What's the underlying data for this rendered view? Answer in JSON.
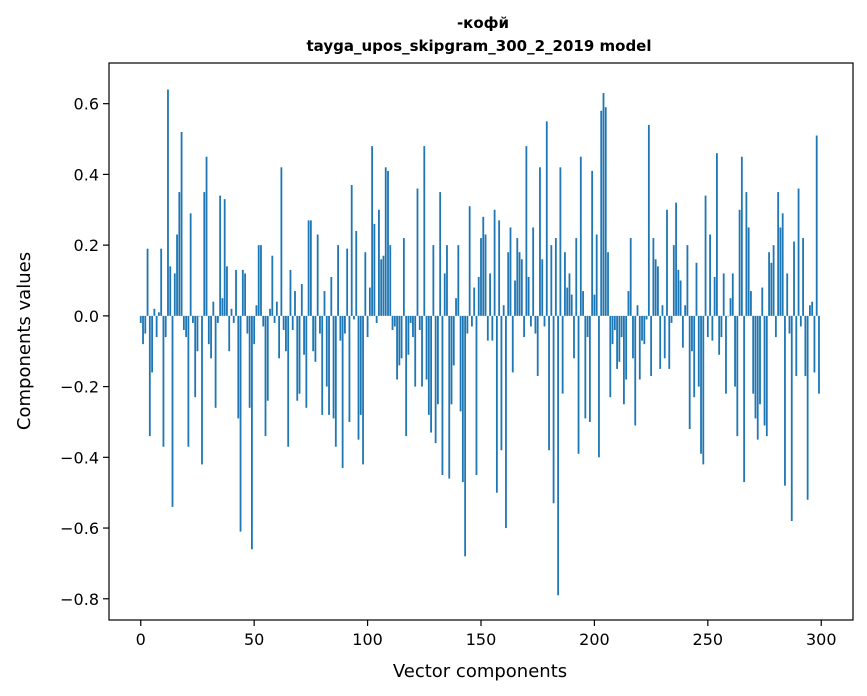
{
  "chart_data": {
    "type": "bar",
    "title": "-кофй",
    "subtitle": "tayga_upos_skipgram_300_2_2019 model",
    "xlabel": "Vector components",
    "ylabel": "Components values",
    "xlim": [
      -14,
      314
    ],
    "ylim": [
      -0.86,
      0.715
    ],
    "xticks": [
      0,
      50,
      100,
      150,
      200,
      250,
      300
    ],
    "xtick_labels": [
      "0",
      "50",
      "100",
      "150",
      "200",
      "250",
      "300"
    ],
    "yticks": [
      -0.8,
      -0.6,
      -0.4,
      -0.2,
      0.0,
      0.2,
      0.4,
      0.6
    ],
    "ytick_labels": [
      "−0.8",
      "−0.6",
      "−0.4",
      "−0.2",
      "0.0",
      "0.2",
      "0.4",
      "0.6"
    ],
    "grid": false,
    "series": [
      {
        "color": "#1f77b4",
        "values": [
          -0.02,
          -0.08,
          -0.05,
          0.19,
          -0.34,
          -0.16,
          0.02,
          -0.06,
          0.01,
          0.19,
          -0.37,
          -0.06,
          0.64,
          0.14,
          -0.54,
          0.12,
          0.23,
          0.35,
          0.52,
          -0.04,
          -0.06,
          -0.37,
          0.29,
          -0.02,
          -0.23,
          -0.1,
          0.0,
          -0.42,
          0.35,
          0.45,
          -0.08,
          -0.12,
          0.04,
          -0.26,
          -0.02,
          0.34,
          0.05,
          0.33,
          0.14,
          -0.1,
          0.02,
          -0.02,
          0.13,
          -0.29,
          -0.61,
          0.13,
          0.12,
          -0.05,
          -0.26,
          -0.66,
          -0.08,
          0.03,
          0.2,
          0.2,
          -0.03,
          -0.34,
          -0.24,
          0.02,
          0.17,
          -0.02,
          0.04,
          -0.12,
          0.42,
          -0.04,
          -0.1,
          -0.37,
          0.13,
          -0.04,
          0.07,
          -0.24,
          -0.22,
          0.09,
          -0.11,
          -0.26,
          0.27,
          0.27,
          -0.1,
          -0.13,
          0.23,
          -0.05,
          -0.28,
          0.07,
          -0.2,
          -0.28,
          0.11,
          -0.29,
          -0.37,
          0.2,
          -0.07,
          -0.43,
          -0.05,
          0.19,
          -0.3,
          0.37,
          -0.01,
          0.24,
          -0.35,
          -0.28,
          -0.42,
          0.18,
          -0.06,
          0.08,
          0.48,
          0.26,
          -0.02,
          0.3,
          0.16,
          0.17,
          0.42,
          0.41,
          0.2,
          -0.04,
          -0.03,
          -0.18,
          -0.14,
          -0.12,
          0.22,
          -0.34,
          -0.11,
          -0.02,
          -0.06,
          -0.2,
          0.36,
          -0.04,
          -0.2,
          0.48,
          -0.18,
          -0.28,
          -0.33,
          0.2,
          -0.36,
          -0.25,
          0.35,
          -0.45,
          0.12,
          0.2,
          -0.46,
          -0.25,
          -0.14,
          0.05,
          0.2,
          -0.27,
          -0.47,
          -0.68,
          -0.05,
          0.31,
          -0.03,
          0.08,
          -0.45,
          0.11,
          0.22,
          0.28,
          0.23,
          -0.07,
          0.12,
          -0.07,
          0.3,
          -0.5,
          0.27,
          -0.38,
          0.03,
          -0.6,
          0.18,
          0.25,
          -0.16,
          0.1,
          0.22,
          0.18,
          0.16,
          -0.06,
          0.48,
          0.11,
          -0.03,
          0.25,
          -0.05,
          -0.17,
          0.42,
          0.16,
          -0.03,
          0.55,
          -0.38,
          0.2,
          -0.53,
          0.22,
          -0.79,
          0.42,
          -0.22,
          0.18,
          0.08,
          0.12,
          0.06,
          -0.12,
          0.22,
          -0.39,
          0.45,
          0.07,
          -0.29,
          -0.06,
          -0.3,
          0.41,
          0.06,
          0.23,
          -0.4,
          0.58,
          0.63,
          0.59,
          0.18,
          -0.23,
          -0.08,
          -0.04,
          -0.15,
          -0.13,
          -0.06,
          -0.25,
          -0.18,
          0.07,
          0.22,
          -0.12,
          -0.31,
          0.03,
          -0.18,
          -0.07,
          -0.08,
          -0.01,
          0.54,
          -0.17,
          0.22,
          0.16,
          0.14,
          -0.15,
          0.03,
          -0.12,
          0.3,
          -0.15,
          -0.02,
          0.2,
          0.32,
          0.13,
          0.1,
          -0.09,
          0.03,
          0.2,
          -0.32,
          -0.1,
          -0.23,
          0.15,
          -0.2,
          -0.39,
          -0.42,
          0.34,
          -0.06,
          0.23,
          -0.07,
          0.11,
          0.46,
          -0.11,
          -0.06,
          0.12,
          -0.22,
          0.0,
          0.05,
          0.12,
          -0.2,
          -0.34,
          0.3,
          0.45,
          -0.47,
          0.35,
          0.25,
          0.07,
          -0.22,
          -0.29,
          -0.35,
          -0.25,
          0.08,
          -0.31,
          -0.34,
          0.18,
          0.15,
          0.2,
          -0.06,
          0.35,
          0.25,
          0.29,
          -0.48,
          0.12,
          -0.05,
          -0.58,
          0.21,
          -0.17,
          0.36,
          -0.03,
          0.22,
          -0.17,
          -0.52,
          0.03,
          0.04,
          -0.16,
          0.51,
          -0.22
        ]
      }
    ]
  }
}
